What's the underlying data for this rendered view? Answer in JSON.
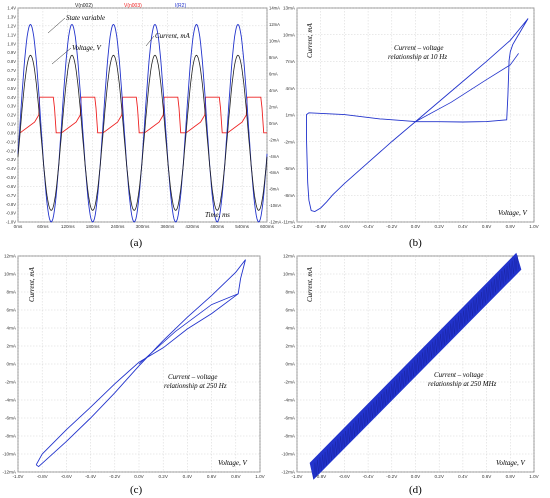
{
  "panel_labels": [
    "(a)",
    "(b)",
    "(c)",
    "(d)"
  ],
  "chart_data": [
    {
      "panel": "(a)",
      "type": "line",
      "legend_top": [
        {
          "text": "V(n002)",
          "color": "#222222"
        },
        {
          "text": "V(n003)",
          "color": "#ee2222"
        },
        {
          "text": "I(R2)",
          "color": "#2233cc"
        }
      ],
      "annotations": [
        "State variable",
        "Voltage, V",
        "Current, mA",
        "Time, ms"
      ],
      "x_ticks": [
        "0ms",
        "60ms",
        "120ms",
        "180ms",
        "240ms",
        "300ms",
        "360ms",
        "420ms",
        "480ms",
        "540ms",
        "600ms"
      ],
      "xlim": [
        0,
        600
      ],
      "left_ticks": [
        "1.4V",
        "1.3V",
        "1.2V",
        "1.1V",
        "1.0V",
        "0.9V",
        "0.8V",
        "0.7V",
        "0.6V",
        "0.5V",
        "0.4V",
        "0.3V",
        "0.2V",
        "0.1V",
        "0.0V",
        "-0.1V",
        "-0.2V",
        "-0.3V",
        "-0.4V",
        "-0.5V",
        "-0.6V",
        "-0.7V",
        "-0.8V",
        "-0.9V",
        "-1.0V"
      ],
      "ylim_left": [
        -1.0,
        1.4
      ],
      "right_ticks": [
        "14mA",
        "12mA",
        "10mA",
        "8mA",
        "6mA",
        "4mA",
        "2mA",
        "0mA",
        "-2mA",
        "-4mA",
        "-6mA",
        "-8mA",
        "-10mA",
        "-12mA"
      ],
      "ylim_right": [
        -12,
        14
      ],
      "series": [
        {
          "name": "V(n002)",
          "color": "#222222",
          "amplitude": 0.87,
          "period_ms": 100
        },
        {
          "name": "V(n003)",
          "color": "#ee2222",
          "low": 0.0,
          "high": 0.4,
          "period_ms": 100
        },
        {
          "name": "I(R2)",
          "color": "#2233cc",
          "amplitude_mA": 12,
          "period_ms": 100
        }
      ]
    },
    {
      "panel": "(b)",
      "type": "line",
      "annotation": [
        "Current – voltage",
        "relationship at 10 Hz"
      ],
      "xlabel": "Voltage, V",
      "ylabel": "Current, mA",
      "x_ticks": [
        "-1.0V",
        "-0.8V",
        "-0.6V",
        "-0.4V",
        "-0.2V",
        "0.0V",
        "0.2V",
        "0.4V",
        "0.6V",
        "0.8V",
        "1.0V"
      ],
      "y_ticks": [
        "13mA",
        "10mA",
        "7mA",
        "4mA",
        "1mA",
        "-2mA",
        "-5mA",
        "-8mA",
        "-11mA"
      ],
      "xlim": [
        -1.0,
        1.0
      ],
      "ylim": [
        -11.5,
        13
      ],
      "color": "#2233cc",
      "loop": [
        [
          -0.88,
          -10.2
        ],
        [
          -0.85,
          -10.3
        ],
        [
          -0.8,
          -9.9
        ],
        [
          -0.75,
          -9.2
        ],
        [
          -0.7,
          -8.4
        ],
        [
          -0.6,
          -7.1
        ],
        [
          -0.4,
          -4.7
        ],
        [
          -0.2,
          -2.3
        ],
        [
          0,
          0
        ],
        [
          0.2,
          2.3
        ],
        [
          0.4,
          4.6
        ],
        [
          0.6,
          6.9
        ],
        [
          0.8,
          9.3
        ],
        [
          0.95,
          11.8
        ],
        [
          0.85,
          9.5
        ],
        [
          0.82,
          8.8
        ],
        [
          0.8,
          8.0
        ],
        [
          0.79,
          7.0
        ],
        [
          0.78,
          3.0
        ],
        [
          0.77,
          0.2
        ],
        [
          0.6,
          -0.0
        ],
        [
          0.4,
          -0.05
        ],
        [
          0.2,
          -0.02
        ],
        [
          0.0,
          0
        ],
        [
          -0.3,
          0.3
        ],
        [
          -0.6,
          0.8
        ],
        [
          -0.9,
          1.0
        ],
        [
          -0.92,
          0.8
        ],
        [
          -0.92,
          -2.0
        ],
        [
          -0.91,
          -7.0
        ],
        [
          -0.9,
          -9.0
        ],
        [
          -0.88,
          -10.2
        ]
      ],
      "inner_branch": [
        [
          0.0,
          0
        ],
        [
          0.3,
          2.2
        ],
        [
          0.6,
          4.8
        ],
        [
          0.8,
          6.5
        ],
        [
          0.87,
          7.8
        ]
      ]
    },
    {
      "panel": "(c)",
      "type": "line",
      "annotation": [
        "Current – voltage",
        "relationship at 250 Hz"
      ],
      "xlabel": "Voltage, V",
      "ylabel": "Current, mA",
      "x_ticks": [
        "-1.0V",
        "-0.8V",
        "-0.6V",
        "-0.4V",
        "-0.2V",
        "0.0V",
        "0.2V",
        "0.4V",
        "0.6V",
        "0.8V",
        "1.0V"
      ],
      "y_ticks": [
        "12mA",
        "10mA",
        "8mA",
        "6mA",
        "4mA",
        "2mA",
        "0mA",
        "-2mA",
        "-4mA",
        "-6mA",
        "-8mA",
        "-10mA",
        "-12mA"
      ],
      "xlim": [
        -1.0,
        1.0
      ],
      "ylim": [
        -12,
        12
      ],
      "color": "#2233cc",
      "loop": [
        [
          -0.85,
          -11.2
        ],
        [
          -0.83,
          -11.4
        ],
        [
          -0.78,
          -10.8
        ],
        [
          -0.6,
          -8.6
        ],
        [
          -0.4,
          -6.0
        ],
        [
          -0.2,
          -3.2
        ],
        [
          0,
          -0.2
        ],
        [
          0.2,
          2.6
        ],
        [
          0.4,
          5.2
        ],
        [
          0.6,
          7.6
        ],
        [
          0.8,
          10.2
        ],
        [
          0.88,
          11.6
        ],
        [
          0.84,
          9.5
        ],
        [
          0.82,
          7.8
        ],
        [
          0.6,
          5.6
        ],
        [
          0.4,
          3.9
        ],
        [
          0.2,
          1.8
        ],
        [
          0,
          0.2
        ],
        [
          -0.2,
          -2.2
        ],
        [
          -0.4,
          -4.8
        ],
        [
          -0.6,
          -7.3
        ],
        [
          -0.8,
          -10.0
        ],
        [
          -0.85,
          -11.2
        ]
      ],
      "inner_branch": [
        [
          0.0,
          0.0
        ],
        [
          0.3,
          3.6
        ],
        [
          0.6,
          6.6
        ],
        [
          0.82,
          7.8
        ]
      ]
    },
    {
      "panel": "(d)",
      "type": "line",
      "annotation": [
        "Current – voltage",
        "relationship at 250 MHz"
      ],
      "xlabel": "Voltage, V",
      "ylabel": "Current, mA",
      "x_ticks": [
        "-1.0V",
        "-0.8V",
        "-0.6V",
        "-0.4V",
        "-0.2V",
        "0.0V",
        "0.2V",
        "0.4V",
        "0.6V",
        "0.8V",
        "1.0V"
      ],
      "y_ticks": [
        "12mA",
        "10mA",
        "8mA",
        "6mA",
        "4mA",
        "2mA",
        "0mA",
        "-2mA",
        "-4mA",
        "-6mA",
        "-8mA",
        "-10mA",
        "-12mA"
      ],
      "xlim": [
        -1.0,
        1.0
      ],
      "ylim": [
        -12,
        12
      ],
      "color": "#2233cc",
      "band": {
        "from": [
          -0.86,
          -11.9
        ],
        "to": [
          0.87,
          11.4
        ],
        "spread_mA": 0.9
      }
    }
  ]
}
